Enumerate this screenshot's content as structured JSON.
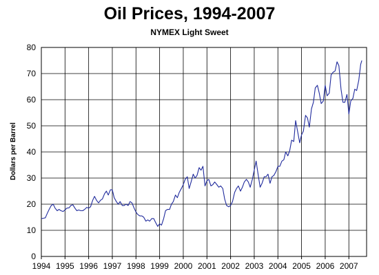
{
  "chart_data": {
    "type": "line",
    "title": "Oil Prices, 1994-2007",
    "subtitle": "NYMEX Light Sweet",
    "xlabel": "",
    "ylabel": "Dollars per Barrel",
    "xlim": [
      1994,
      2007.75
    ],
    "ylim": [
      0,
      80
    ],
    "xticks": [
      "1994",
      "1995",
      "1996",
      "1997",
      "1998",
      "1999",
      "2000",
      "2001",
      "2002",
      "2003",
      "2004",
      "2005",
      "2006",
      "2007"
    ],
    "yticks": [
      "0",
      "10",
      "20",
      "30",
      "40",
      "50",
      "60",
      "70",
      "80"
    ],
    "grid": true,
    "legend": "none",
    "line_color": "#1f2a9c",
    "series": [
      {
        "values": [
          [
            1994.0,
            14.5
          ],
          [
            1994.08,
            14.6
          ],
          [
            1994.17,
            14.8
          ],
          [
            1994.25,
            16.5
          ],
          [
            1994.33,
            18.0
          ],
          [
            1994.42,
            19.5
          ],
          [
            1994.5,
            20.0
          ],
          [
            1994.58,
            18.5
          ],
          [
            1994.67,
            17.5
          ],
          [
            1994.75,
            18.0
          ],
          [
            1994.83,
            17.5
          ],
          [
            1994.92,
            17.2
          ],
          [
            1995.0,
            17.8
          ],
          [
            1995.08,
            18.5
          ],
          [
            1995.17,
            18.6
          ],
          [
            1995.25,
            19.5
          ],
          [
            1995.33,
            19.8
          ],
          [
            1995.42,
            18.5
          ],
          [
            1995.5,
            17.5
          ],
          [
            1995.58,
            17.8
          ],
          [
            1995.67,
            17.5
          ],
          [
            1995.75,
            17.5
          ],
          [
            1995.83,
            18.0
          ],
          [
            1995.92,
            18.8
          ],
          [
            1996.0,
            18.5
          ],
          [
            1996.08,
            19.0
          ],
          [
            1996.17,
            21.5
          ],
          [
            1996.25,
            23.0
          ],
          [
            1996.33,
            21.5
          ],
          [
            1996.42,
            20.5
          ],
          [
            1996.5,
            21.5
          ],
          [
            1996.58,
            22.0
          ],
          [
            1996.67,
            24.0
          ],
          [
            1996.75,
            25.0
          ],
          [
            1996.83,
            23.5
          ],
          [
            1996.92,
            25.5
          ],
          [
            1997.0,
            25.5
          ],
          [
            1997.08,
            22.5
          ],
          [
            1997.17,
            21.0
          ],
          [
            1997.25,
            20.0
          ],
          [
            1997.33,
            21.0
          ],
          [
            1997.42,
            19.5
          ],
          [
            1997.5,
            19.5
          ],
          [
            1997.58,
            20.0
          ],
          [
            1997.67,
            19.5
          ],
          [
            1997.75,
            21.0
          ],
          [
            1997.83,
            20.5
          ],
          [
            1997.92,
            18.5
          ],
          [
            1998.0,
            17.0
          ],
          [
            1998.08,
            16.0
          ],
          [
            1998.17,
            15.5
          ],
          [
            1998.25,
            15.5
          ],
          [
            1998.33,
            15.0
          ],
          [
            1998.42,
            13.5
          ],
          [
            1998.5,
            14.0
          ],
          [
            1998.58,
            13.5
          ],
          [
            1998.67,
            14.5
          ],
          [
            1998.75,
            14.5
          ],
          [
            1998.83,
            13.0
          ],
          [
            1998.92,
            11.5
          ],
          [
            1999.0,
            12.5
          ],
          [
            1999.08,
            12.0
          ],
          [
            1999.17,
            14.5
          ],
          [
            1999.25,
            17.5
          ],
          [
            1999.33,
            18.0
          ],
          [
            1999.42,
            18.0
          ],
          [
            1999.5,
            20.0
          ],
          [
            1999.58,
            21.0
          ],
          [
            1999.67,
            23.5
          ],
          [
            1999.75,
            22.5
          ],
          [
            1999.83,
            24.5
          ],
          [
            1999.92,
            26.0
          ],
          [
            2000.0,
            27.5
          ],
          [
            2000.08,
            29.5
          ],
          [
            2000.17,
            30.5
          ],
          [
            2000.25,
            26.0
          ],
          [
            2000.33,
            28.5
          ],
          [
            2000.42,
            31.5
          ],
          [
            2000.5,
            30.0
          ],
          [
            2000.58,
            31.0
          ],
          [
            2000.67,
            34.0
          ],
          [
            2000.75,
            33.0
          ],
          [
            2000.83,
            34.5
          ],
          [
            2000.92,
            27.0
          ],
          [
            2001.0,
            29.0
          ],
          [
            2001.08,
            29.5
          ],
          [
            2001.17,
            27.0
          ],
          [
            2001.25,
            27.5
          ],
          [
            2001.33,
            28.5
          ],
          [
            2001.42,
            27.5
          ],
          [
            2001.5,
            26.5
          ],
          [
            2001.58,
            27.0
          ],
          [
            2001.67,
            26.0
          ],
          [
            2001.75,
            22.0
          ],
          [
            2001.83,
            19.5
          ],
          [
            2001.92,
            19.0
          ],
          [
            2002.0,
            19.5
          ],
          [
            2002.08,
            21.0
          ],
          [
            2002.17,
            24.5
          ],
          [
            2002.25,
            26.0
          ],
          [
            2002.33,
            27.0
          ],
          [
            2002.42,
            25.0
          ],
          [
            2002.5,
            26.5
          ],
          [
            2002.58,
            28.5
          ],
          [
            2002.67,
            29.5
          ],
          [
            2002.75,
            28.5
          ],
          [
            2002.83,
            26.5
          ],
          [
            2002.92,
            29.5
          ],
          [
            2003.0,
            33.0
          ],
          [
            2003.08,
            36.5
          ],
          [
            2003.17,
            31.0
          ],
          [
            2003.25,
            26.5
          ],
          [
            2003.33,
            28.0
          ],
          [
            2003.42,
            30.5
          ],
          [
            2003.5,
            30.5
          ],
          [
            2003.58,
            31.5
          ],
          [
            2003.67,
            28.0
          ],
          [
            2003.75,
            30.5
          ],
          [
            2003.83,
            31.0
          ],
          [
            2003.92,
            32.5
          ],
          [
            2004.0,
            34.5
          ],
          [
            2004.08,
            34.5
          ],
          [
            2004.17,
            36.5
          ],
          [
            2004.25,
            37.0
          ],
          [
            2004.33,
            40.0
          ],
          [
            2004.42,
            38.5
          ],
          [
            2004.5,
            40.5
          ],
          [
            2004.58,
            44.5
          ],
          [
            2004.67,
            44.0
          ],
          [
            2004.75,
            52.0
          ],
          [
            2004.83,
            48.0
          ],
          [
            2004.92,
            43.5
          ],
          [
            2005.0,
            46.5
          ],
          [
            2005.08,
            48.0
          ],
          [
            2005.17,
            54.0
          ],
          [
            2005.25,
            53.0
          ],
          [
            2005.33,
            49.5
          ],
          [
            2005.42,
            56.5
          ],
          [
            2005.5,
            59.0
          ],
          [
            2005.58,
            64.5
          ],
          [
            2005.67,
            65.5
          ],
          [
            2005.75,
            62.5
          ],
          [
            2005.83,
            58.5
          ],
          [
            2005.92,
            59.5
          ],
          [
            2006.0,
            65.5
          ],
          [
            2006.08,
            61.5
          ],
          [
            2006.17,
            62.5
          ],
          [
            2006.25,
            69.5
          ],
          [
            2006.33,
            70.5
          ],
          [
            2006.42,
            71.0
          ],
          [
            2006.5,
            74.5
          ],
          [
            2006.58,
            73.0
          ],
          [
            2006.67,
            64.0
          ],
          [
            2006.75,
            59.0
          ],
          [
            2006.83,
            59.0
          ],
          [
            2006.92,
            62.0
          ],
          [
            2007.0,
            54.5
          ],
          [
            2007.08,
            59.5
          ],
          [
            2007.17,
            60.5
          ],
          [
            2007.25,
            64.0
          ],
          [
            2007.33,
            63.5
          ],
          [
            2007.42,
            67.5
          ],
          [
            2007.5,
            73.5
          ],
          [
            2007.55,
            75.0
          ]
        ]
      }
    ]
  }
}
